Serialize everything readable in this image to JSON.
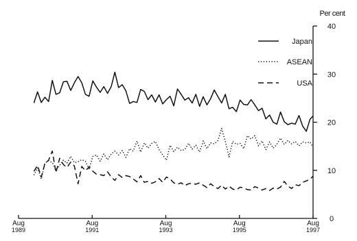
{
  "chart_data": {
    "type": "line",
    "title": "",
    "xlabel": "",
    "ylabel": "Per cent",
    "ylim": [
      0,
      40
    ],
    "xlim": [
      1989.583,
      1997.583
    ],
    "grid": false,
    "legend_position": "top-right",
    "x_ticks": [
      {
        "value": 1989.583,
        "line1": "Aug",
        "line2": "1989"
      },
      {
        "value": 1991.583,
        "line1": "Aug",
        "line2": "1991"
      },
      {
        "value": 1993.583,
        "line1": "Aug",
        "line2": "1993"
      },
      {
        "value": 1995.583,
        "line1": "Aug",
        "line2": "1995"
      },
      {
        "value": 1997.583,
        "line1": "Aug",
        "line2": "1997"
      }
    ],
    "y_ticks": [
      0,
      10,
      20,
      30,
      40
    ],
    "x": [
      1990.0,
      1990.1,
      1990.2,
      1990.3,
      1990.4,
      1990.5,
      1990.6,
      1990.7,
      1990.8,
      1990.9,
      1991.0,
      1991.1,
      1991.2,
      1991.3,
      1991.4,
      1991.5,
      1991.6,
      1991.7,
      1991.8,
      1991.9,
      1992.0,
      1992.1,
      1992.2,
      1992.3,
      1992.4,
      1992.5,
      1992.6,
      1992.7,
      1992.8,
      1992.9,
      1993.0,
      1993.1,
      1993.2,
      1993.3,
      1993.4,
      1993.5,
      1993.6,
      1993.7,
      1993.8,
      1993.9,
      1994.0,
      1994.1,
      1994.2,
      1994.3,
      1994.4,
      1994.5,
      1994.6,
      1994.7,
      1994.8,
      1994.9,
      1995.0,
      1995.1,
      1995.2,
      1995.3,
      1995.4,
      1995.5,
      1995.6,
      1995.7,
      1995.8,
      1995.9,
      1996.0,
      1996.1,
      1996.2,
      1996.3,
      1996.4,
      1996.5,
      1996.6,
      1996.7,
      1996.8,
      1996.9,
      1997.0,
      1997.1,
      1997.2,
      1997.3,
      1997.4,
      1997.5,
      1997.583
    ],
    "series": [
      {
        "name": "Japan",
        "dash": "solid",
        "values": [
          24,
          26.3,
          24.1,
          25.2,
          24.3,
          28.7,
          25.8,
          26.1,
          28.4,
          28.5,
          26.6,
          28.2,
          29.5,
          28.2,
          25.8,
          25.4,
          28.6,
          27.3,
          26.2,
          27.4,
          26,
          27.4,
          30.4,
          27.2,
          27.8,
          26.5,
          23.9,
          24.3,
          24.1,
          26.8,
          26.4,
          24.7,
          25.7,
          24.2,
          25.7,
          23.8,
          24.7,
          25.4,
          23.4,
          26.9,
          25.8,
          24.6,
          25.1,
          24,
          25.8,
          23.3,
          25.3,
          23.6,
          24.9,
          26.7,
          25.3,
          24,
          25.8,
          22.8,
          23.1,
          22.2,
          24.6,
          23.7,
          23.6,
          24.7,
          23.6,
          22.4,
          22.9,
          20.7,
          21.5,
          20,
          19.6,
          22.1,
          20.1,
          19.5,
          19.8,
          19.6,
          21.4,
          19.2,
          18.1,
          20.6,
          21.3
        ]
      },
      {
        "name": "ASEAN",
        "dash": "dotted",
        "values": [
          9,
          10.5,
          8.2,
          11.5,
          12,
          11.6,
          10.1,
          11,
          12.1,
          11.5,
          12.9,
          11.6,
          11.8,
          12.2,
          11.9,
          10.3,
          12.9,
          13.2,
          11.9,
          13.4,
          12.2,
          13.4,
          14,
          13.2,
          14.1,
          12.7,
          14.5,
          14,
          16.1,
          13.8,
          15.7,
          14.6,
          15.6,
          16,
          14.3,
          13.2,
          12.1,
          15.2,
          13.9,
          14.8,
          14.1,
          14.3,
          15.6,
          14.4,
          15.2,
          13.8,
          16.1,
          14.5,
          15.7,
          15.5,
          16.2,
          18.7,
          16,
          12.8,
          16,
          15.4,
          15.6,
          14.5,
          17.2,
          16.5,
          17.2,
          15.1,
          16.1,
          14.3,
          15.9,
          14.6,
          15.4,
          16.7,
          15.4,
          16.2,
          15.5,
          16,
          15.1,
          15.9,
          15.7,
          15.9,
          14.8
        ]
      },
      {
        "name": "USA",
        "dash": "dashed",
        "values": [
          9.8,
          11,
          8.6,
          11.4,
          12.1,
          14,
          9.5,
          12.5,
          11.2,
          10.6,
          11.7,
          10.9,
          7.2,
          10.8,
          9.9,
          10.7,
          9.8,
          9.2,
          9.1,
          8.9,
          9.7,
          8.6,
          7.9,
          9.1,
          8.5,
          8.9,
          8.7,
          8.2,
          7.6,
          8.9,
          7.5,
          7.7,
          7.3,
          7.6,
          8.3,
          7.5,
          8.6,
          8.2,
          7.4,
          7.1,
          7.4,
          6.8,
          7.2,
          7.3,
          7.1,
          7.4,
          6.9,
          6.4,
          7.2,
          6.6,
          6.2,
          6.9,
          6.1,
          6.7,
          6.1,
          5.9,
          6.5,
          6.3,
          6,
          5.9,
          6.6,
          6.3,
          5.9,
          6.2,
          5.8,
          6.3,
          6.1,
          6.5,
          7.7,
          6.7,
          6.2,
          7,
          6.8,
          7.5,
          7.8,
          8.1,
          8.8
        ]
      }
    ]
  }
}
